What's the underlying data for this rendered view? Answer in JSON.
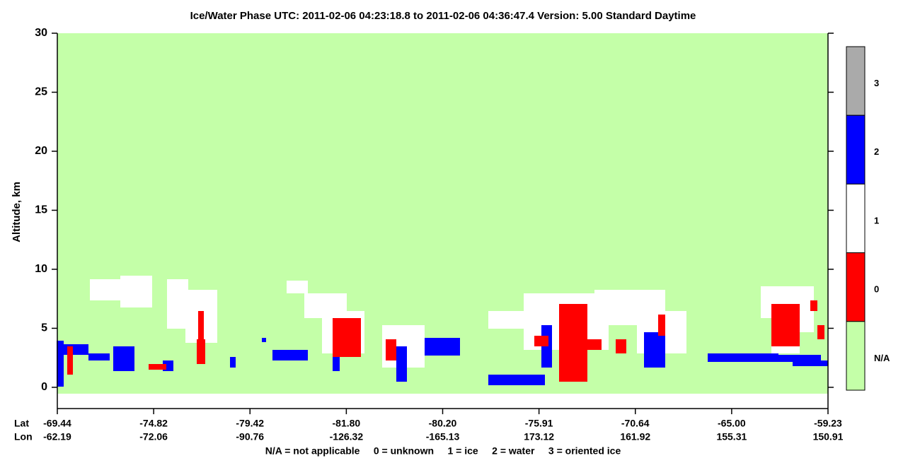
{
  "chart_data": {
    "type": "curtain",
    "title": "Ice/Water Phase    UTC:  2011-02-06   04:23:18.8  to  2011-02-06   04:36:47.4    Version: 5.00  Standard Daytime",
    "y_label": "Altitude, km",
    "ylim": [
      -1.8,
      30
    ],
    "yticks": [
      0,
      5,
      10,
      15,
      20,
      25,
      30
    ],
    "x_row_labels": [
      "Lat",
      "Lon"
    ],
    "lat": [
      "-69.44",
      "-74.82",
      "-79.42",
      "-81.80",
      "-80.20",
      "-75.91",
      "-70.64",
      "-65.00",
      "-59.23"
    ],
    "lon": [
      "-62.19",
      "-72.06",
      "-90.76",
      "-126.32",
      "-165.13",
      "173.12",
      "161.92",
      "155.31",
      "150.91"
    ],
    "footer": "N/A = not applicable     0 = unknown     1 = ice     2 = water     3 = oriented ice",
    "colorbar": {
      "labels": [
        "3",
        "2",
        "1",
        "0",
        "N/A"
      ],
      "colors": [
        "#aaaaaa",
        "#0000ff",
        "#ffffff",
        "#ff0000",
        "#c4ffa8"
      ]
    }
  }
}
